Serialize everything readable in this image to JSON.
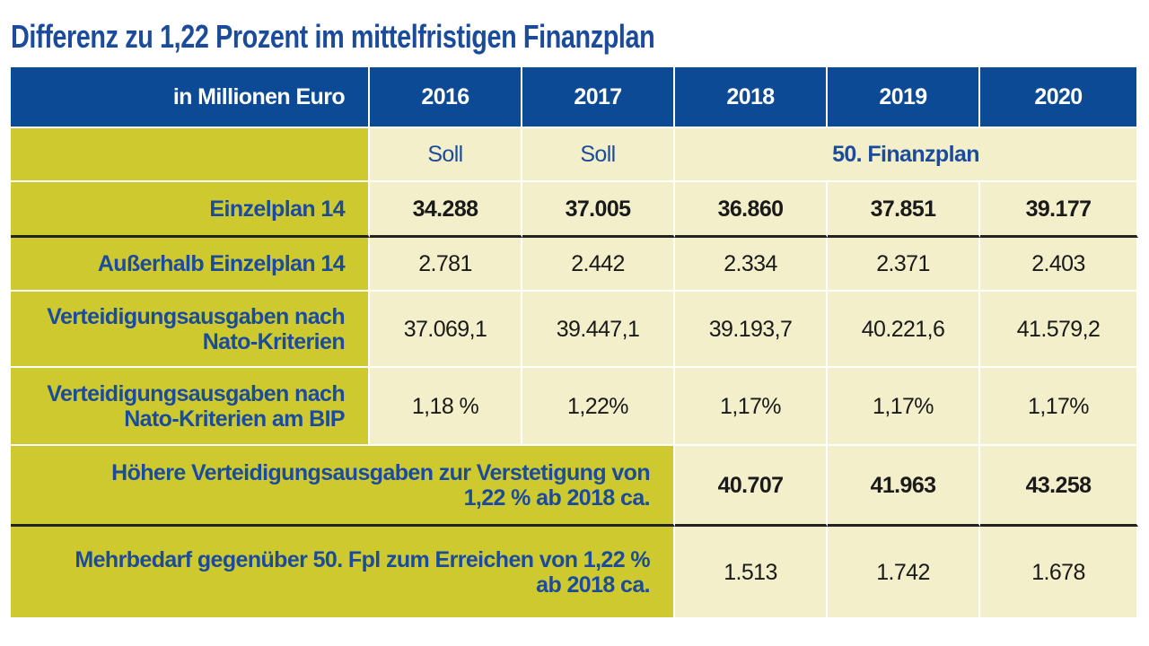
{
  "title": "Differenz zu 1,22 Prozent im mittelfristigen Finanzplan",
  "table": {
    "header": [
      "in Millionen Euro",
      "2016",
      "2017",
      "2018",
      "2019",
      "2020"
    ],
    "rows": [
      {
        "cells": [
          "Soll",
          "Soll",
          "50. Finanzplan"
        ]
      },
      {
        "label": "Einzelplan 14",
        "cells": [
          "34.288",
          "37.005",
          "36.860",
          "37.851",
          "39.177"
        ]
      },
      {
        "label": "Außerhalb Einzelplan 14",
        "cells": [
          "2.781",
          "2.442",
          "2.334",
          "2.371",
          "2.403"
        ]
      },
      {
        "label": "Verteidigungsausgaben nach\nNato-Kriterien",
        "cells": [
          "37.069,1",
          "39.447,1",
          "39.193,7",
          "40.221,6",
          "41.579,2"
        ]
      },
      {
        "label": "Verteidigungsausgaben nach\nNato-Kriterien am BIP",
        "cells": [
          "1,18 %",
          "1,22%",
          "1,17%",
          "1,17%",
          "1,17%"
        ]
      },
      {
        "label": "Höhere Verteidigungsausgaben zur Verstetigung von\n1,22 % ab 2018 ca.",
        "cells": [
          "40.707",
          "41.963",
          "43.258"
        ]
      },
      {
        "label": "Mehrbedarf gegenüber 50. Fpl zum Erreichen von 1,22 %\nab 2018 ca.",
        "cells": [
          "1.513",
          "1.742",
          "1.678"
        ]
      }
    ]
  }
}
